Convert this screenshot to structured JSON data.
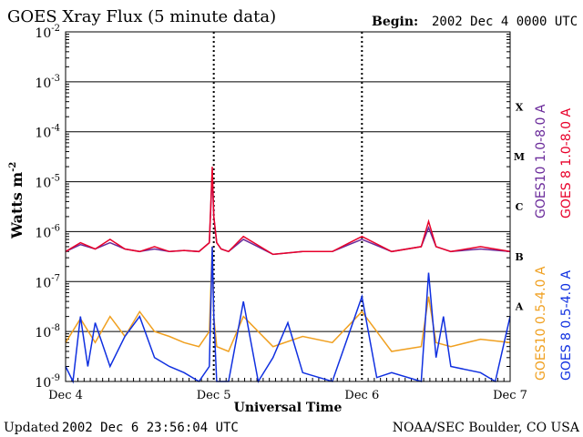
{
  "title": "GOES Xray Flux (5 minute data)",
  "begin_label": "Begin:",
  "begin_value": "2002 Dec 4 0000 UTC",
  "ylabel": "Watts m",
  "ylabel_exp": "-2",
  "xlabel": "Universal Time",
  "footer_left_label": "Updated",
  "footer_left_value": "2002 Dec  6 23:56:04 UTC",
  "footer_right": "NOAA/SEC Boulder, CO USA",
  "legend": [
    {
      "text": "GOES10 1.0-8.0 A",
      "color": "#6a2a9a"
    },
    {
      "text": "GOES 8 1.0-8.0 A",
      "color": "#e8002a"
    },
    {
      "text": "GOES10 0.5-4.0 A",
      "color": "#f0a020"
    },
    {
      "text": "GOES 8 0.5-4.0 A",
      "color": "#1030e0"
    }
  ],
  "flare_classes": [
    "X",
    "M",
    "C",
    "B",
    "A"
  ],
  "chart_data": {
    "type": "line",
    "yscale": "log",
    "ylim": [
      1e-09,
      0.01
    ],
    "yticks": [
      {
        "base": "10",
        "exp": "-2"
      },
      {
        "base": "10",
        "exp": "-3"
      },
      {
        "base": "10",
        "exp": "-4"
      },
      {
        "base": "10",
        "exp": "-5"
      },
      {
        "base": "10",
        "exp": "-6"
      },
      {
        "base": "10",
        "exp": "-7"
      },
      {
        "base": "10",
        "exp": "-8"
      },
      {
        "base": "10",
        "exp": "-9"
      }
    ],
    "xlim": [
      "2002-12-04 00:00",
      "2002-12-07 00:00"
    ],
    "xticks": [
      "Dec 4",
      "Dec 5",
      "Dec 6",
      "Dec 7"
    ],
    "grid": true,
    "series": [
      {
        "name": "GOES10 1.0-8.0 A",
        "color": "#6a2a9a",
        "x": [
          0,
          0.1,
          0.2,
          0.3,
          0.4,
          0.5,
          0.6,
          0.7,
          0.8,
          0.9,
          0.97,
          0.99,
          1.0,
          1.02,
          1.05,
          1.1,
          1.2,
          1.4,
          1.6,
          1.8,
          2.0,
          2.2,
          2.4,
          2.45,
          2.5,
          2.6,
          2.8,
          3.0
        ],
        "y": [
          4e-07,
          5.5e-07,
          4.5e-07,
          6e-07,
          4.5e-07,
          4e-07,
          4.5e-07,
          4e-07,
          4.2e-07,
          4e-07,
          6e-07,
          1.5e-05,
          2e-06,
          6e-07,
          4.5e-07,
          4e-07,
          7e-07,
          3.5e-07,
          4e-07,
          4e-07,
          7e-07,
          4e-07,
          5e-07,
          1.2e-06,
          5e-07,
          4e-07,
          4.5e-07,
          4e-07
        ]
      },
      {
        "name": "GOES 8 1.0-8.0 A",
        "color": "#e8002a",
        "x": [
          0,
          0.1,
          0.2,
          0.3,
          0.4,
          0.5,
          0.6,
          0.7,
          0.8,
          0.9,
          0.97,
          0.99,
          1.0,
          1.02,
          1.05,
          1.1,
          1.2,
          1.4,
          1.6,
          1.8,
          2.0,
          2.2,
          2.4,
          2.45,
          2.5,
          2.6,
          2.8,
          3.0
        ],
        "y": [
          4e-07,
          6e-07,
          4.5e-07,
          7e-07,
          4.5e-07,
          4e-07,
          5e-07,
          4e-07,
          4.2e-07,
          4e-07,
          6e-07,
          2e-05,
          2e-06,
          6e-07,
          4.5e-07,
          4e-07,
          8e-07,
          3.5e-07,
          4e-07,
          4e-07,
          8e-07,
          4e-07,
          5e-07,
          1.6e-06,
          5e-07,
          4e-07,
          5e-07,
          4e-07
        ]
      },
      {
        "name": "GOES10 0.5-4.0 A",
        "color": "#f0a020",
        "x": [
          0,
          0.1,
          0.2,
          0.3,
          0.4,
          0.5,
          0.6,
          0.7,
          0.8,
          0.9,
          0.97,
          0.99,
          1.0,
          1.02,
          1.1,
          1.2,
          1.4,
          1.6,
          1.8,
          2.0,
          2.2,
          2.4,
          2.45,
          2.5,
          2.6,
          2.8,
          3.0
        ],
        "y": [
          6e-09,
          1.8e-08,
          6e-09,
          2e-08,
          8e-09,
          2.5e-08,
          1e-08,
          8e-09,
          6e-09,
          5e-09,
          1e-08,
          5e-07,
          2e-08,
          5e-09,
          4e-09,
          2e-08,
          5e-09,
          8e-09,
          6e-09,
          2.5e-08,
          4e-09,
          5e-09,
          5e-08,
          6e-09,
          5e-09,
          7e-09,
          6e-09
        ]
      },
      {
        "name": "GOES 8 0.5-4.0 A",
        "color": "#1030e0",
        "x": [
          0,
          0.05,
          0.1,
          0.15,
          0.2,
          0.3,
          0.4,
          0.5,
          0.6,
          0.7,
          0.8,
          0.9,
          0.97,
          0.99,
          1.0,
          1.02,
          1.1,
          1.2,
          1.3,
          1.4,
          1.5,
          1.6,
          1.8,
          2.0,
          2.1,
          2.2,
          2.4,
          2.45,
          2.5,
          2.55,
          2.6,
          2.8,
          2.9,
          3.0
        ],
        "y": [
          2e-09,
          1e-09,
          2e-08,
          2e-09,
          1.5e-08,
          2e-09,
          8e-09,
          2e-08,
          3e-09,
          2e-09,
          1.5e-09,
          1e-09,
          2e-09,
          5e-07,
          2e-08,
          1e-09,
          1e-09,
          4e-08,
          1e-09,
          3e-09,
          1.5e-08,
          1.5e-09,
          1e-09,
          5e-08,
          1.2e-09,
          1.5e-09,
          1e-09,
          1.5e-07,
          3e-09,
          2e-08,
          2e-09,
          1.5e-09,
          1e-09,
          2e-08
        ]
      }
    ]
  }
}
